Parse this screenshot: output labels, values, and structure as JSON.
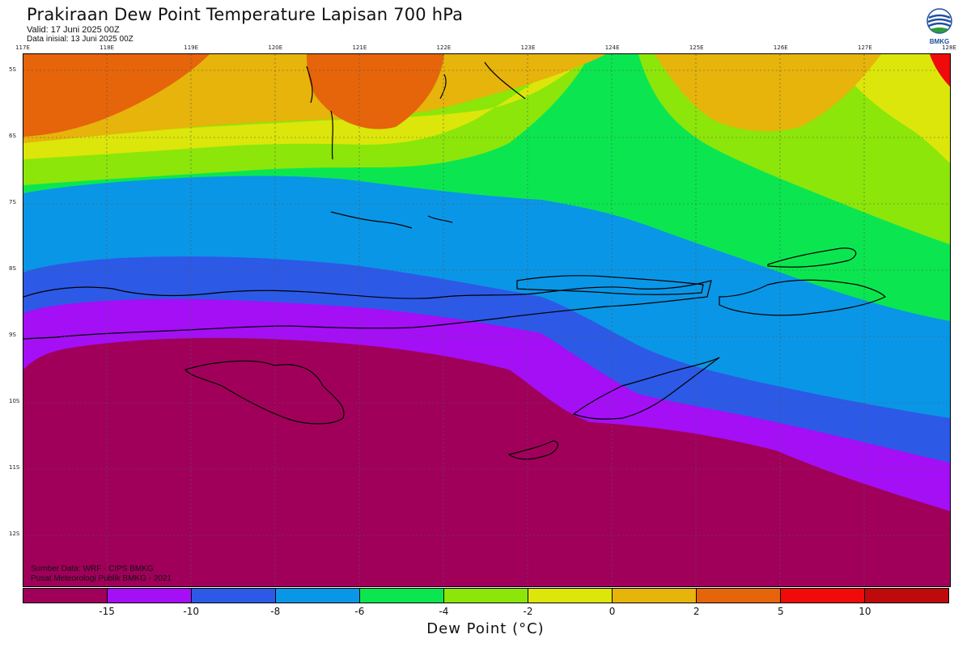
{
  "header": {
    "title": "Prakiraan Dew Point Temperature Lapisan 700 hPa",
    "valid": "Valid: 17 Juni 2025 00Z",
    "initial": "Data inisial: 13 Juni 2025 00Z"
  },
  "logo": {
    "text": "BMKG",
    "icon": "bmkg-logo-icon"
  },
  "map": {
    "lon_labels": [
      "117E",
      "118E",
      "119E",
      "120E",
      "121E",
      "122E",
      "123E",
      "124E",
      "125E",
      "126E",
      "127E",
      "128E"
    ],
    "lat_labels": [
      "5S",
      "6S",
      "7S",
      "8S",
      "9S",
      "10S",
      "11S",
      "12S"
    ]
  },
  "credits": {
    "source": "Sumber Data: WRF - CIPS BMKG",
    "center": "Pusat Meteorologi Publik BMKG - 2021"
  },
  "colorbar": {
    "title": "Dew Point (°C)",
    "ticks": [
      "-15",
      "-10",
      "-8",
      "-6",
      "-4",
      "-2",
      "0",
      "2",
      "5",
      "10"
    ],
    "colors": [
      "#a0005a",
      "#a40ff5",
      "#2c5ae6",
      "#0a96e6",
      "#0be650",
      "#8ce60a",
      "#dce60a",
      "#e6b40a",
      "#e6640a",
      "#f00a0a",
      "#be0a0a"
    ]
  }
}
